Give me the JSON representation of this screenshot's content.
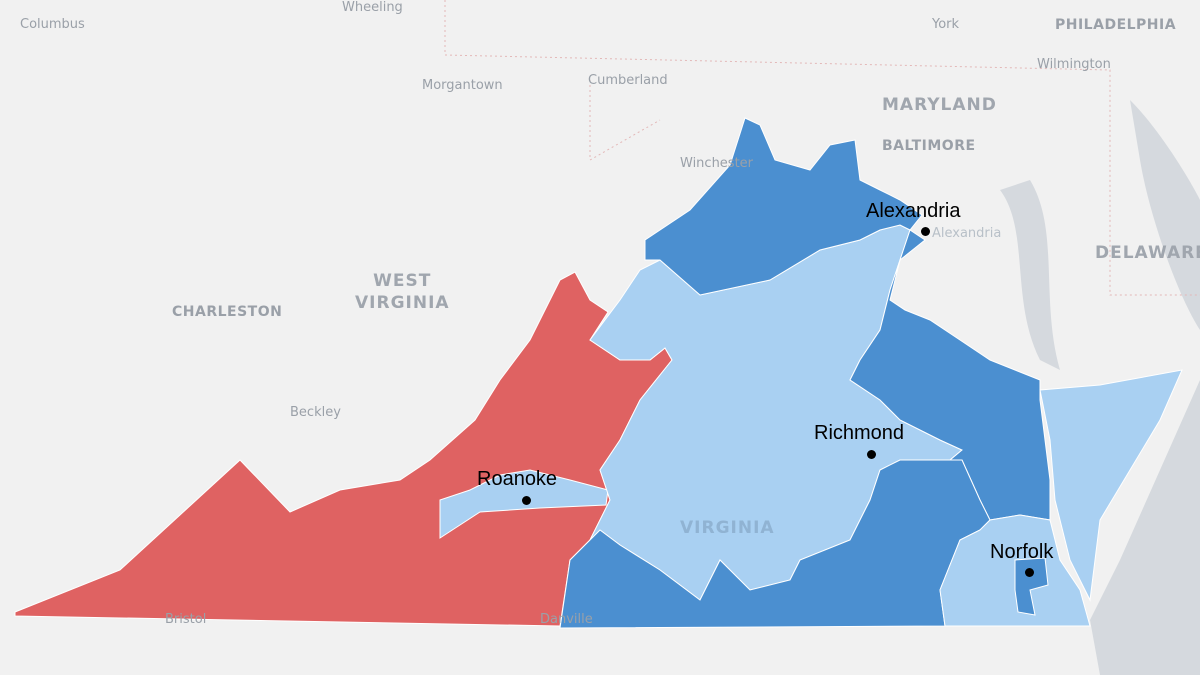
{
  "colors": {
    "republican": "#df6262",
    "democrat_strong": "#4b8fd0",
    "democrat_lean": "#a9d0f2",
    "land": "#f1f1f1",
    "water": "#d5d9de"
  },
  "background_labels": {
    "columbus": "Columbus",
    "wheeling": "Wheeling",
    "morgantown": "Morgantown",
    "cumberland": "Cumberland",
    "york": "York",
    "philadelphia": "PHILADELPHIA",
    "wilmington": "Wilmington",
    "maryland": "MARYLAND",
    "baltimore": "BALTIMORE",
    "winchester": "Winchester",
    "alexandria_small": "Alexandria",
    "delaware": "DELAWARE",
    "west_virginia": "WEST\nVIRGINIA",
    "charleston": "CHARLESTON",
    "beckley": "Beckley",
    "bristol": "Bristol",
    "danville": "Danville",
    "virginia": "VIRGINIA"
  },
  "cities": [
    {
      "name": "Alexandria"
    },
    {
      "name": "Roanoke"
    },
    {
      "name": "Richmond"
    },
    {
      "name": "Norfolk"
    }
  ]
}
